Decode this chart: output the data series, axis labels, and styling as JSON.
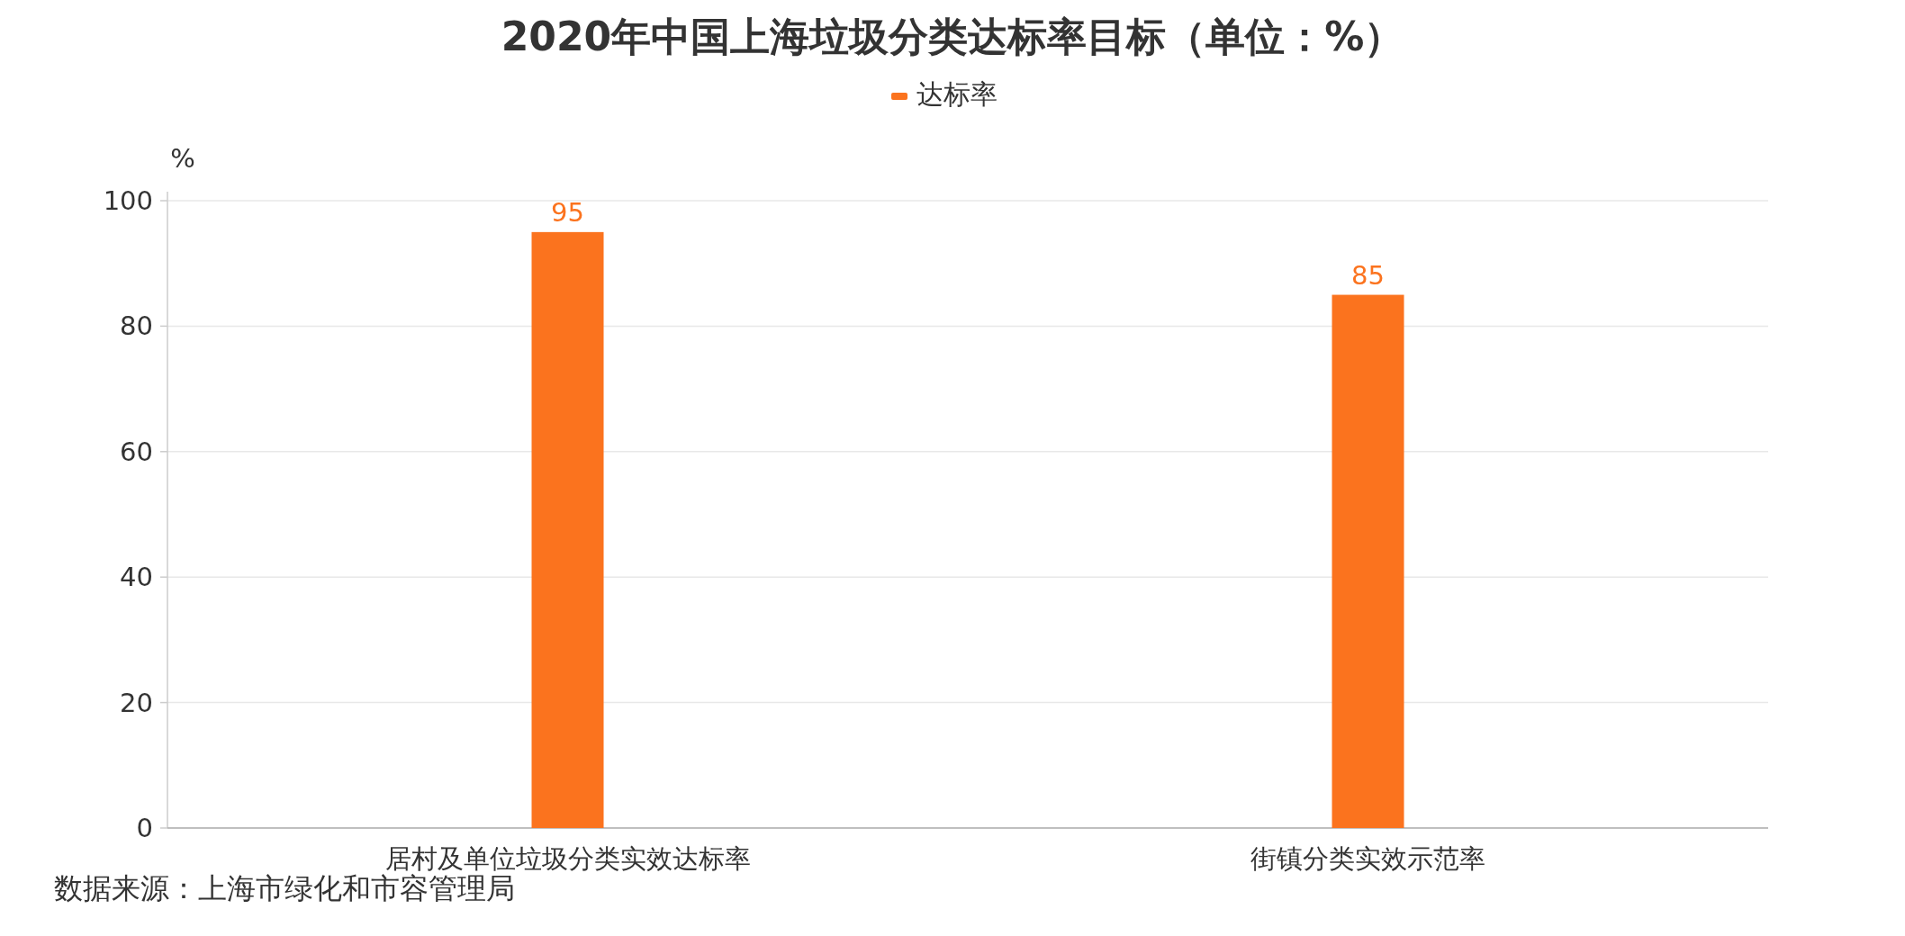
{
  "chart_data": {
    "type": "bar",
    "title": "2020年中国上海垃圾分类达标率目标（单位：%）",
    "categories": [
      "居村及单位垃圾分类实效达标率",
      "街镇分类实效示范率"
    ],
    "series": [
      {
        "name": "达标率",
        "color": "#fb731e",
        "values": [
          95,
          85
        ]
      }
    ],
    "ylabel": "%",
    "ylim": [
      0,
      100
    ],
    "yticks": [
      0,
      20,
      40,
      60,
      80,
      100
    ],
    "grid": "y",
    "legend": "top",
    "data_labels": true,
    "annotations": [
      "数据来源：上海市绿化和市容管理局"
    ]
  }
}
